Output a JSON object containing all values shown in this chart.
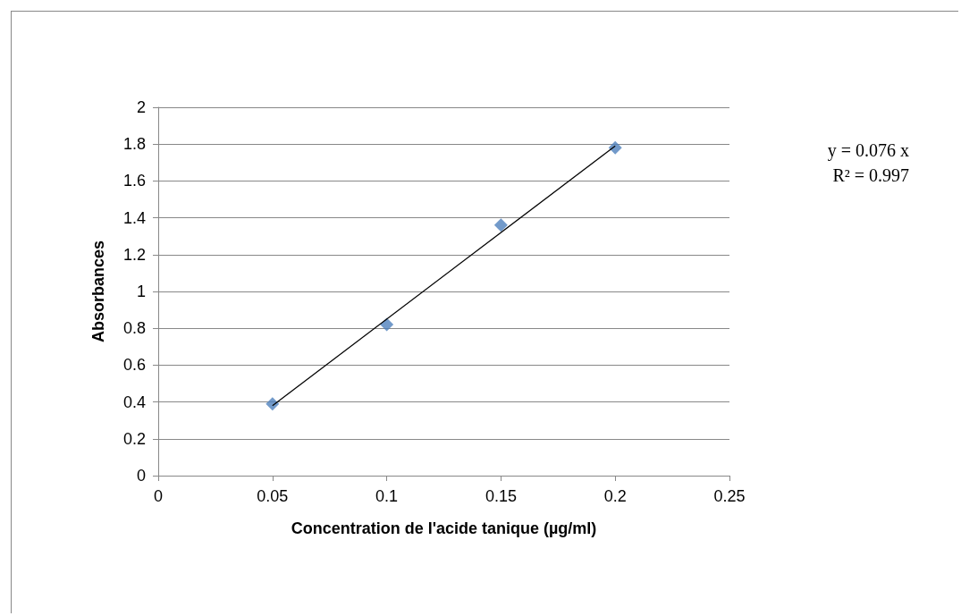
{
  "chart_data": {
    "type": "scatter",
    "xlabel": "Concentration de l'acide tanique (µg/ml)",
    "ylabel": "Absorbances",
    "x": [
      0.05,
      0.1,
      0.15,
      0.2
    ],
    "series": [
      {
        "color": "#4f81bd",
        "marker": "diamond",
        "values": [
          0.39,
          0.82,
          1.36,
          1.78
        ]
      },
      {
        "type": "line",
        "color": "#000000",
        "marker": "none",
        "x": [
          0.05,
          0.2
        ],
        "values": [
          0.38,
          1.79
        ]
      }
    ],
    "annotations": [
      "y = 0.076 x",
      "R² = 0.997"
    ],
    "xlim": [
      0,
      0.25
    ],
    "xticks": [
      0,
      0.05,
      0.1,
      0.15,
      0.2,
      0.25
    ],
    "ylim": [
      0,
      2
    ],
    "yticks": [
      0,
      0.2,
      0.4,
      0.6,
      0.8,
      1,
      1.2,
      1.4,
      1.6,
      1.8,
      2
    ],
    "grid": "y"
  }
}
